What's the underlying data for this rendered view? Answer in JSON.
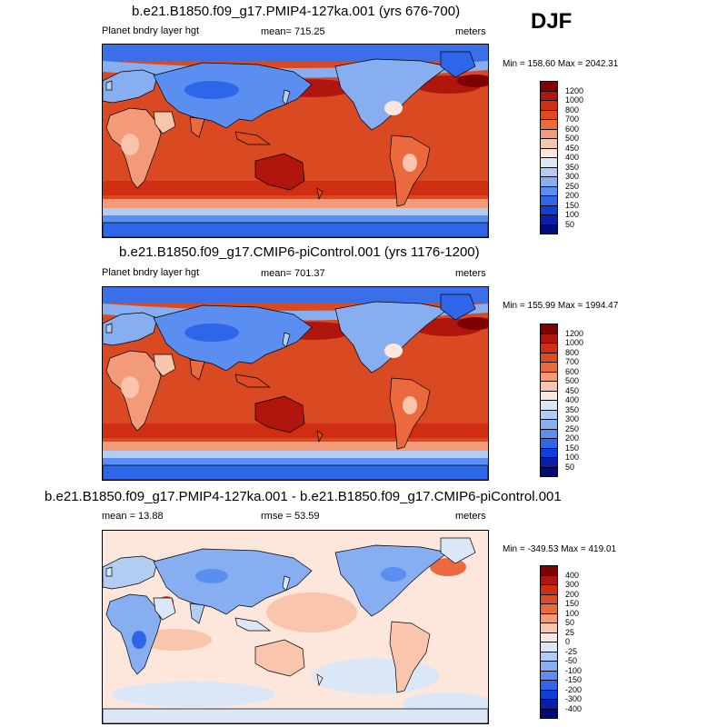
{
  "season": "DJF",
  "chart_data": [
    {
      "type": "heatmap",
      "title": "b.e21.B1850.f09_g17.PMIP4-127ka.001 (yrs 676-700)",
      "left_label": "Planet bndry layer hgt",
      "center_label": "mean= 715.25",
      "right_label": "meters",
      "minmax": "Min = 158.60 Max = 2042.31",
      "mean": 715.25,
      "min": 158.6,
      "max": 2042.31,
      "units": "meters",
      "levels": [
        "1200",
        "1000",
        "800",
        "700",
        "600",
        "500",
        "450",
        "400",
        "350",
        "300",
        "250",
        "200",
        "150",
        "100",
        "50"
      ],
      "colors": [
        "#7f0000",
        "#b0160d",
        "#cf2e12",
        "#df4a20",
        "#ea6a3e",
        "#f39a78",
        "#f9c5ad",
        "#fde6dc",
        "#dbe7f7",
        "#b3cdf2",
        "#86aef0",
        "#5a8ef0",
        "#2e66ea",
        "#0f3fd6",
        "#0a1fa8",
        "#000a7a"
      ],
      "variant": "ctrl"
    },
    {
      "type": "heatmap",
      "title": "b.e21.B1850.f09_g17.CMIP6-piControl.001 (yrs 1176-1200)",
      "left_label": "Planet bndry layer hgt",
      "center_label": "mean= 701.37",
      "right_label": "meters",
      "minmax": "Min = 155.99 Max = 1994.47",
      "mean": 701.37,
      "min": 155.99,
      "max": 1994.47,
      "units": "meters",
      "levels": [
        "1200",
        "1000",
        "800",
        "700",
        "600",
        "500",
        "450",
        "400",
        "350",
        "300",
        "250",
        "200",
        "150",
        "100",
        "50"
      ],
      "colors": [
        "#7f0000",
        "#b0160d",
        "#cf2e12",
        "#df4a20",
        "#ea6a3e",
        "#f39a78",
        "#f9c5ad",
        "#fde6dc",
        "#dbe7f7",
        "#b3cdf2",
        "#86aef0",
        "#5a8ef0",
        "#2e66ea",
        "#0f3fd6",
        "#0a1fa8",
        "#000a7a"
      ],
      "variant": "ctrl"
    },
    {
      "type": "heatmap",
      "title": "b.e21.B1850.f09_g17.PMIP4-127ka.001 - b.e21.B1850.f09_g17.CMIP6-piControl.001",
      "left_label": "mean =  13.88",
      "center_label": "rmse =  53.59",
      "right_label": "meters",
      "minmax": "Min = -349.53 Max = 419.01",
      "mean": 13.88,
      "rmse": 53.59,
      "min": -349.53,
      "max": 419.01,
      "units": "meters",
      "levels": [
        "400",
        "300",
        "200",
        "150",
        "100",
        "50",
        "25",
        "0",
        "-25",
        "-50",
        "-100",
        "-150",
        "-200",
        "-300",
        "-400"
      ],
      "colors": [
        "#7f0000",
        "#b0160d",
        "#cf2e12",
        "#df4a20",
        "#ea6a3e",
        "#f39a78",
        "#f9c5ad",
        "#fde6dc",
        "#dbe7f7",
        "#b3cdf2",
        "#86aef0",
        "#5a8ef0",
        "#2e66ea",
        "#0f3fd6",
        "#0a1fa8",
        "#000a7a"
      ],
      "variant": "diff"
    }
  ]
}
